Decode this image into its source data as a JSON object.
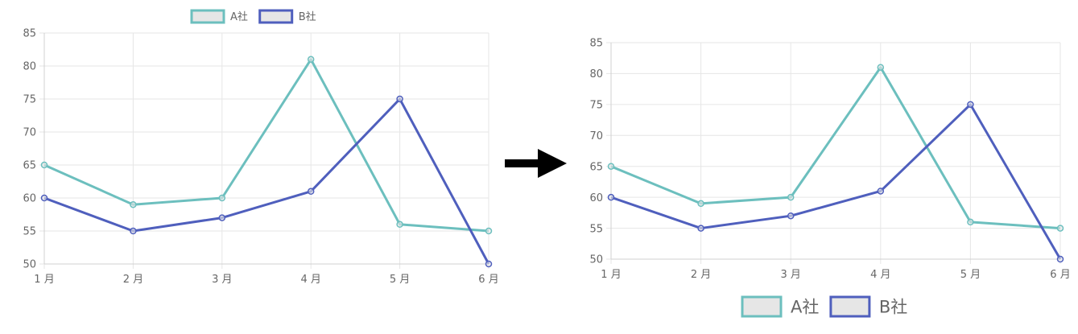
{
  "chart_data": [
    {
      "type": "line",
      "title": "",
      "position": "before",
      "categories": [
        "1 月",
        "2 月",
        "3 月",
        "4 月",
        "5 月",
        "6 月"
      ],
      "series": [
        {
          "name": "A社",
          "values": [
            65,
            59,
            60,
            81,
            56,
            55
          ],
          "color": "#6cbfbe"
        },
        {
          "name": "B社",
          "values": [
            60,
            55,
            57,
            61,
            75,
            50
          ],
          "color": "#4f5fbd"
        }
      ],
      "xlabel": "",
      "ylabel": "",
      "ylim": [
        50,
        85
      ],
      "yticks": [
        50,
        55,
        60,
        65,
        70,
        75,
        80,
        85
      ],
      "grid": true,
      "legend_position": "top"
    },
    {
      "type": "line",
      "title": "",
      "position": "after",
      "categories": [
        "1 月",
        "2 月",
        "3 月",
        "4 月",
        "5 月",
        "6 月"
      ],
      "series": [
        {
          "name": "A社",
          "values": [
            65,
            59,
            60,
            81,
            56,
            55
          ],
          "color": "#6cbfbe"
        },
        {
          "name": "B社",
          "values": [
            60,
            55,
            57,
            61,
            75,
            50
          ],
          "color": "#4f5fbd"
        }
      ],
      "xlabel": "",
      "ylabel": "",
      "ylim": [
        50,
        85
      ],
      "yticks": [
        50,
        55,
        60,
        65,
        70,
        75,
        80,
        85
      ],
      "grid": true,
      "legend_position": "bottom"
    }
  ],
  "arrow": {
    "icon": "right-arrow-icon",
    "color": "#000000"
  },
  "colors": {
    "grid": "#e6e6e6",
    "tick_text": "#666666",
    "legend_fill": "#e6e6e6"
  }
}
